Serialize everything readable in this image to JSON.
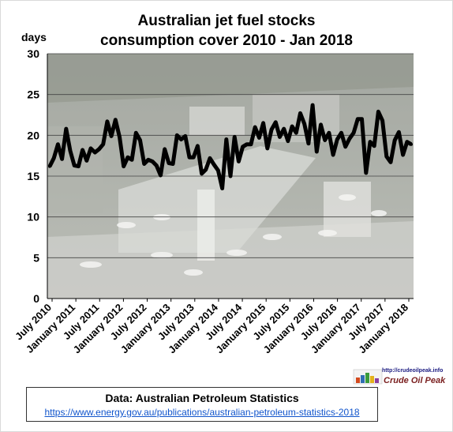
{
  "chart_data": {
    "type": "line",
    "title_line1": "Australian  jet fuel stocks",
    "title_line2": "consumption  cover 2010 - Jan 2018",
    "ylabel": "days",
    "xlabel": "",
    "ylim": [
      0,
      30
    ],
    "y_ticks": [
      0,
      5,
      10,
      15,
      20,
      25,
      30
    ],
    "x_tick_labels": [
      "July 2010",
      "January 2011",
      "July 2011",
      "January 2012",
      "July 2012",
      "January 2013",
      "July 2013",
      "January 2014",
      "July 2014",
      "January 2015",
      "July 2015",
      "January 2016",
      "July 2016",
      "January 2017",
      "July 2017",
      "January 2018"
    ],
    "grid": true,
    "legend": "none",
    "background": "aerial airport photo",
    "line_color": "#000000",
    "values": [
      16.2,
      17.2,
      18.9,
      17.1,
      20.8,
      18.1,
      16.3,
      16.2,
      18.2,
      16.9,
      18.4,
      17.9,
      18.3,
      18.9,
      21.7,
      19.9,
      21.9,
      19.8,
      16.2,
      17.3,
      17.0,
      20.3,
      19.4,
      16.5,
      17.0,
      16.8,
      16.3,
      15.1,
      18.3,
      16.6,
      16.5,
      20.0,
      19.5,
      19.9,
      17.3,
      17.3,
      18.7,
      15.3,
      15.8,
      17.2,
      16.4,
      15.7,
      13.5,
      19.5,
      15.0,
      19.8,
      16.8,
      18.6,
      18.9,
      18.9,
      21.0,
      19.7,
      21.5,
      18.4,
      20.7,
      21.6,
      19.8,
      20.8,
      19.3,
      21.1,
      20.3,
      22.7,
      21.4,
      19.0,
      23.7,
      18.0,
      21.3,
      19.4,
      20.3,
      17.6,
      19.5,
      20.3,
      18.6,
      19.6,
      20.3,
      22.0,
      22.0,
      15.4,
      19.2,
      18.7,
      22.9,
      21.8,
      17.4,
      16.7,
      19.4,
      20.4,
      17.6,
      19.2,
      18.9
    ]
  },
  "source": {
    "title": "Data: Australian Petroleum Statistics",
    "link": "https://www.energy.gov.au/publications/australian-petroleum-statistics-2018"
  },
  "logo": {
    "url": "http://crudeoilpeak.info",
    "name": "Crude Oil Peak"
  }
}
